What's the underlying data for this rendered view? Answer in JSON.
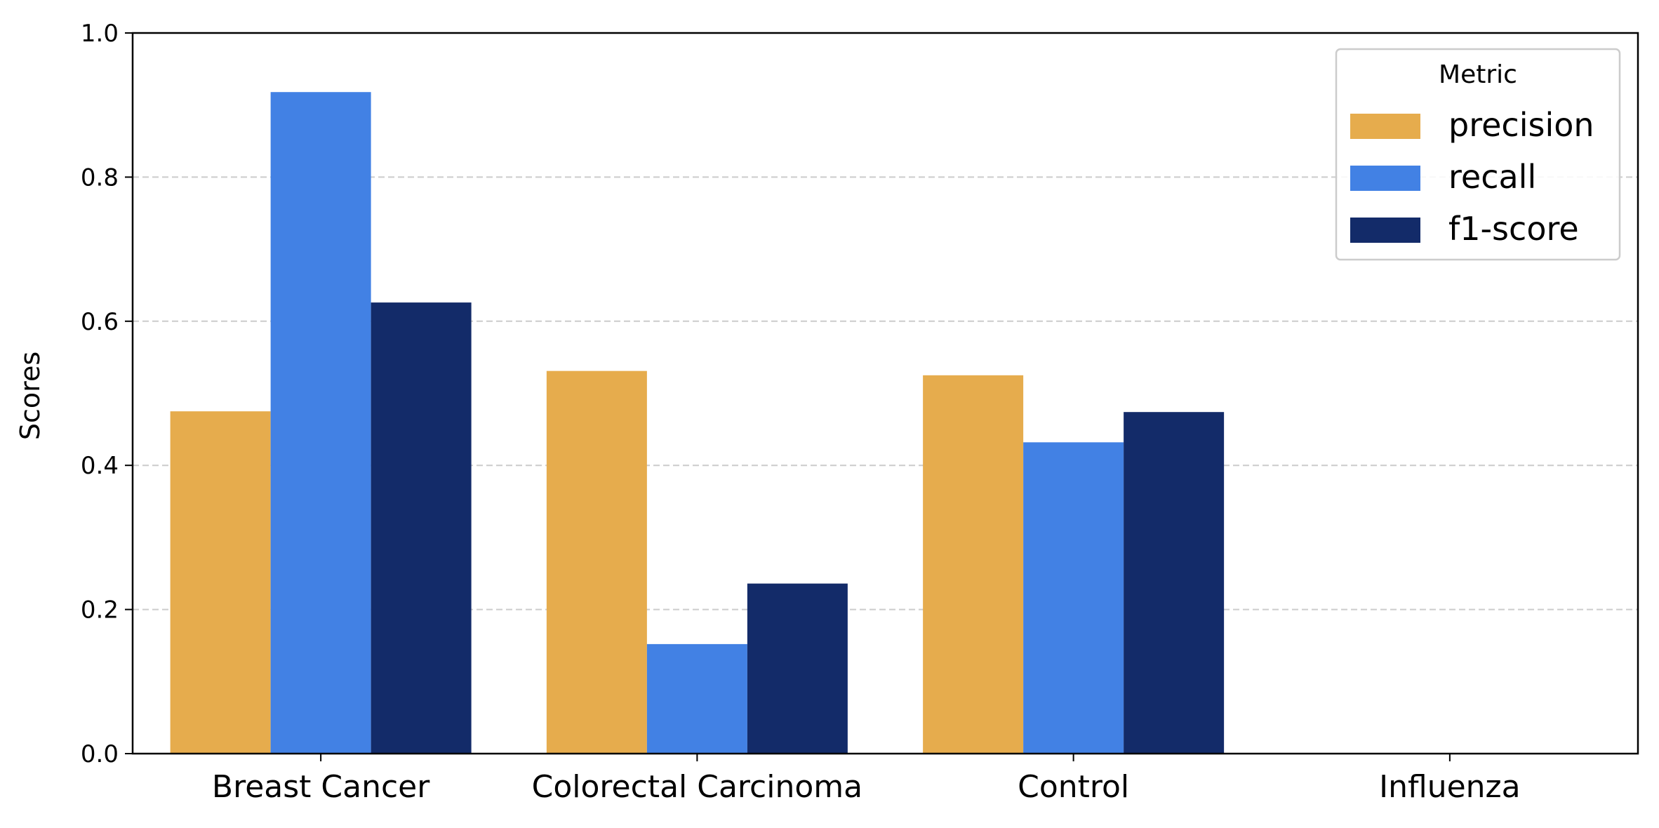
{
  "chart_data": {
    "type": "bar",
    "title": "",
    "xlabel": "",
    "ylabel": "Scores",
    "ylim": [
      0,
      1.0
    ],
    "yticks": [
      "0.0",
      "0.2",
      "0.4",
      "0.6",
      "0.8",
      "1.0"
    ],
    "grid": "y-dashed",
    "categories": [
      "Breast Cancer",
      "Colorectal Carcinoma",
      "Control",
      "Influenza"
    ],
    "series": [
      {
        "name": "precision",
        "color": "#E6AC4D",
        "values": [
          0.475,
          0.531,
          0.525,
          0.0
        ]
      },
      {
        "name": "recall",
        "color": "#4281E4",
        "values": [
          0.918,
          0.152,
          0.432,
          0.0
        ]
      },
      {
        "name": "f1-score",
        "color": "#132B69",
        "values": [
          0.626,
          0.236,
          0.474,
          0.0
        ]
      }
    ],
    "legend": {
      "title": "Metric",
      "position": "top-right"
    }
  }
}
